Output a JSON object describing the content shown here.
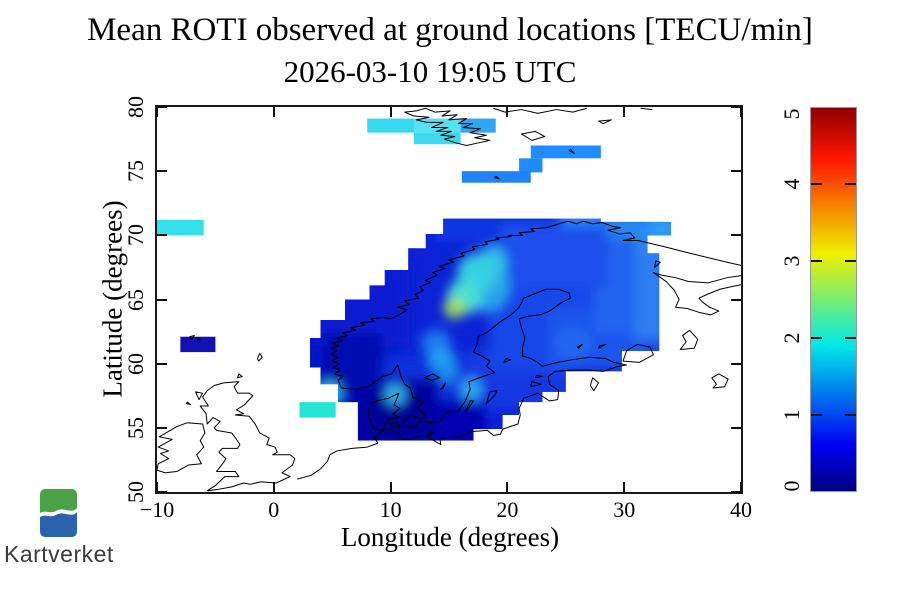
{
  "header": {
    "title": "Mean ROTI observed at ground locations [TECU/min]",
    "subtitle": "2026-03-10 19:05 UTC"
  },
  "axes": {
    "x": {
      "label": "Longitude (degrees)",
      "tick_labels": [
        "−10",
        "0",
        "10",
        "20",
        "30",
        "40"
      ],
      "tick_values": [
        -10,
        0,
        10,
        20,
        30,
        40
      ],
      "range": [
        -10,
        40
      ]
    },
    "y": {
      "label": "Latitude (degrees)",
      "tick_labels": [
        "50",
        "55",
        "60",
        "65",
        "70",
        "75",
        "80"
      ],
      "tick_values": [
        50,
        55,
        60,
        65,
        70,
        75,
        80
      ],
      "range": [
        50,
        80
      ]
    }
  },
  "colorbar": {
    "tick_labels": [
      "0",
      "1",
      "2",
      "3",
      "4",
      "5"
    ],
    "tick_values": [
      0,
      1,
      2,
      3,
      4,
      5
    ],
    "min": 0,
    "max": 5,
    "gradient_colors": [
      "#000080",
      "#0000F2",
      "#00E8E8",
      "#F0F000",
      "#FF1400",
      "#8F0000"
    ],
    "gradient_stops": [
      0,
      12,
      38,
      62,
      87,
      100
    ]
  },
  "logo": {
    "text": "Kartverket",
    "green": "#4CA247",
    "blue": "#2A62AC"
  },
  "chart_data": {
    "type": "heatmap",
    "title": "Mean ROTI observed at ground locations [TECU/min]",
    "timestamp_utc": "2026-03-10 19:05 UTC",
    "units": "TECU/min",
    "xlabel": "Longitude (degrees)",
    "ylabel": "Latitude (degrees)",
    "xlim": [
      -10,
      40
    ],
    "ylim": [
      50,
      80
    ],
    "value_scale": [
      0,
      5
    ],
    "legend_position": "right-colorbar",
    "grid": false,
    "base_region": {
      "value": 0.5,
      "color": "#0B22D6"
    },
    "blob_outline": [
      [
        14.5,
        71.3
      ],
      [
        28,
        71.3
      ],
      [
        28,
        71.05
      ],
      [
        34,
        71.05
      ],
      [
        34,
        70.0
      ],
      [
        32,
        70.0
      ],
      [
        32,
        68.6
      ],
      [
        33,
        68.6
      ],
      [
        33,
        61.0
      ],
      [
        29.8,
        61.0
      ],
      [
        29.8,
        59.4
      ],
      [
        25,
        59.4
      ],
      [
        25,
        57.8
      ],
      [
        23,
        57.8
      ],
      [
        23,
        57.0
      ],
      [
        21,
        57.0
      ],
      [
        21,
        56.0
      ],
      [
        19.6,
        56.0
      ],
      [
        19.6,
        54.9
      ],
      [
        17.1,
        54.9
      ],
      [
        17.1,
        54.0
      ],
      [
        7.2,
        54.0
      ],
      [
        7.2,
        57.0
      ],
      [
        5.5,
        57.0
      ],
      [
        5.5,
        58.4
      ],
      [
        4.0,
        58.4
      ],
      [
        4.0,
        59.7
      ],
      [
        3.1,
        59.7
      ],
      [
        3.1,
        62.0
      ],
      [
        4.0,
        62.0
      ],
      [
        4.0,
        63.4
      ],
      [
        6.1,
        63.4
      ],
      [
        6.1,
        65.0
      ],
      [
        8.2,
        65.0
      ],
      [
        8.2,
        66.1
      ],
      [
        9.5,
        66.1
      ],
      [
        9.5,
        67.3
      ],
      [
        11.5,
        67.3
      ],
      [
        11.5,
        69.0
      ],
      [
        13.0,
        69.0
      ],
      [
        13.0,
        70.1
      ],
      [
        14.5,
        70.1
      ]
    ],
    "cells": [
      [
        3.1,
        56.5,
        10,
        63.4,
        0.35,
        "#0412C4"
      ],
      [
        4,
        62,
        11,
        67.3,
        0.45,
        "#0A1ED2"
      ],
      [
        10,
        56.5,
        17,
        60,
        0.55,
        "#1130DE"
      ],
      [
        17,
        57,
        25,
        60.5,
        0.6,
        "#1238E2"
      ],
      [
        19,
        60,
        33,
        71.05,
        0.7,
        "#1646E8"
      ],
      [
        24,
        60.3,
        31,
        63.8,
        0.85,
        "#1C54EC"
      ],
      [
        28,
        63,
        33,
        68.6,
        0.95,
        "#2263F0"
      ],
      [
        31.5,
        62.4,
        33,
        70,
        1.15,
        "#2E7FF2"
      ],
      [
        31.6,
        70,
        34,
        71.05,
        1.3,
        "#2F9BF5"
      ],
      [
        24,
        70.3,
        28,
        71.3,
        1.2,
        "#2E8CF4"
      ],
      [
        28,
        70.2,
        31.6,
        71.05,
        1.2,
        "#2787F3"
      ],
      [
        14.5,
        70.1,
        24,
        71.3,
        0.6,
        "#0F34E2"
      ],
      [
        20,
        66.5,
        28,
        70.2,
        0.85,
        "#1C50EC"
      ],
      [
        7.2,
        54,
        13.5,
        58.2,
        0.2,
        "#0000A2"
      ],
      [
        13.5,
        54,
        17.5,
        56.6,
        0.25,
        "#0104B0"
      ],
      [
        4.8,
        58.6,
        8.6,
        61.8,
        0.25,
        "#0009B0"
      ],
      [
        9,
        54.8,
        13,
        57.6,
        0.15,
        "#000096"
      ]
    ],
    "spots": [
      [
        17.9,
        66.1,
        2.3,
        2.1,
        1.45,
        "#2BA2EE"
      ],
      [
        18.7,
        67.9,
        1.3,
        1.2,
        1.6,
        "#30BCE8"
      ],
      [
        17.4,
        67,
        1.7,
        1.6,
        1.8,
        "#38CFE2"
      ],
      [
        16.3,
        65.2,
        1.5,
        1.3,
        2.0,
        "#48DDD0"
      ],
      [
        15.5,
        64.3,
        1.0,
        0.75,
        2.55,
        "#9CDF5C"
      ],
      [
        13.9,
        61.6,
        1.3,
        1.1,
        1.1,
        "#1E78EE"
      ],
      [
        14.4,
        60.3,
        1.1,
        0.95,
        1.4,
        "#22A0F0"
      ],
      [
        14.9,
        59.3,
        0.85,
        0.8,
        1.25,
        "#1E8CEC"
      ],
      [
        16.9,
        58,
        0.95,
        0.9,
        1.45,
        "#2FA8F0"
      ],
      [
        10.4,
        57.6,
        0.9,
        0.75,
        1.55,
        "#37B8F0"
      ],
      [
        25.6,
        61.6,
        1.6,
        1.2,
        1.0,
        "#2166F0"
      ],
      [
        4.8,
        57.8,
        1.0,
        0.8,
        1.7,
        "#30C0E8"
      ]
    ],
    "patches": [
      [
        -10,
        70,
        -6,
        71.2,
        1.95,
        "#35E0E8"
      ],
      [
        -8,
        60.9,
        -5,
        62.1,
        0.3,
        "#1212B4"
      ],
      [
        2.2,
        55.8,
        5.3,
        57,
        2.05,
        "#25E5D8"
      ],
      [
        8,
        78,
        12,
        79.1,
        1.85,
        "#38D8F0"
      ],
      [
        12,
        78,
        16,
        79.1,
        1.9,
        "#55E2F2"
      ],
      [
        16,
        78,
        19,
        79.1,
        1.35,
        "#2FA6F5"
      ],
      [
        12,
        77.1,
        16,
        78,
        1.85,
        "#3CD9EF"
      ],
      [
        22,
        76,
        28,
        77,
        1.25,
        "#1E8CFA"
      ],
      [
        21,
        74.9,
        23,
        76,
        1.25,
        "#1E8CFA"
      ],
      [
        16.1,
        74.1,
        22,
        75,
        1.2,
        "#1E82F8"
      ]
    ]
  }
}
